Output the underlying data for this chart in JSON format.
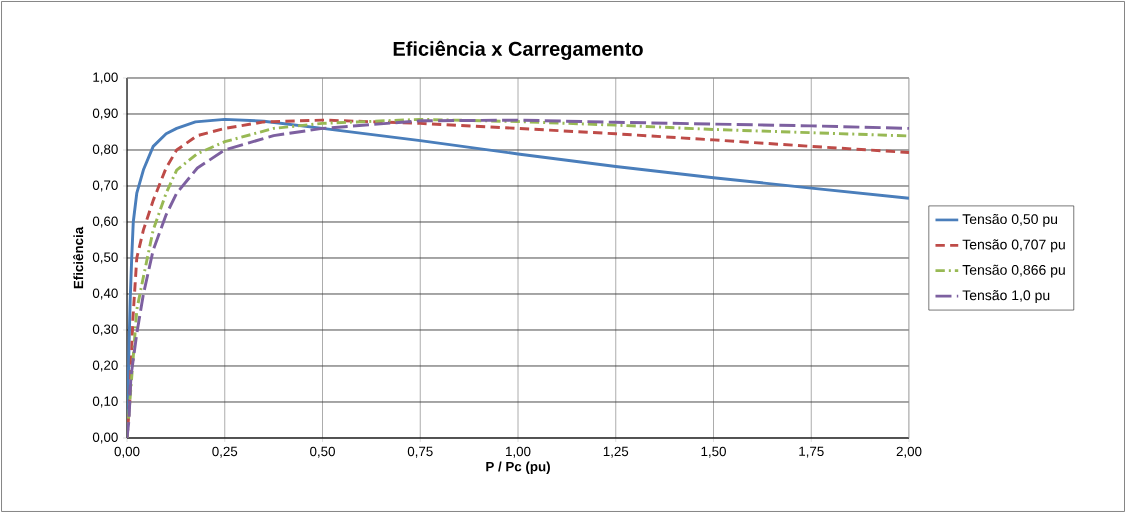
{
  "chart_data": {
    "type": "line",
    "title": "Eficiência x Carregamento",
    "xlabel": "P / Pc (pu)",
    "ylabel": "Eficiência",
    "xlim": [
      0,
      2
    ],
    "ylim": [
      0,
      1
    ],
    "xticks": [
      {
        "value": 0,
        "label": "0,00"
      },
      {
        "value": 0.25,
        "label": "0,25"
      },
      {
        "value": 0.5,
        "label": "0,50"
      },
      {
        "value": 0.75,
        "label": "0,75"
      },
      {
        "value": 1,
        "label": "1,00"
      },
      {
        "value": 1.25,
        "label": "1,25"
      },
      {
        "value": 1.5,
        "label": "1,50"
      },
      {
        "value": 1.75,
        "label": "1,75"
      },
      {
        "value": 2,
        "label": "2,00"
      }
    ],
    "yticks": [
      {
        "value": 0,
        "label": "0,00"
      },
      {
        "value": 0.1,
        "label": "0,10"
      },
      {
        "value": 0.2,
        "label": "0,20"
      },
      {
        "value": 0.3,
        "label": "0,30"
      },
      {
        "value": 0.4,
        "label": "0,40"
      },
      {
        "value": 0.5,
        "label": "0,50"
      },
      {
        "value": 0.6,
        "label": "0,60"
      },
      {
        "value": 0.7,
        "label": "0,70"
      },
      {
        "value": 0.8,
        "label": "0,80"
      },
      {
        "value": 0.9,
        "label": "0,90"
      },
      {
        "value": 1,
        "label": "1,00"
      }
    ],
    "grid": true,
    "legend": "right",
    "marker": "none",
    "series": [
      {
        "name": "Tensão 0,50 pu",
        "color": "#4a7ebb",
        "line_style": "solid",
        "x": [
          0,
          0.005,
          0.008,
          0.012,
          0.016,
          0.025,
          0.042,
          0.067,
          0.1,
          0.127,
          0.175,
          0.25,
          0.35,
          0.5,
          0.75,
          1.0,
          1.25,
          1.5,
          1.75,
          2.0
        ],
        "values": [
          0,
          0.25,
          0.38,
          0.5,
          0.6,
          0.68,
          0.745,
          0.81,
          0.845,
          0.86,
          0.878,
          0.885,
          0.88,
          0.86,
          0.826,
          0.789,
          0.754,
          0.723,
          0.694,
          0.666
        ]
      },
      {
        "name": "Tensão 0,707 pu",
        "color": "#be4b48",
        "line_style": "dashed",
        "x": [
          0,
          0.007,
          0.015,
          0.025,
          0.042,
          0.067,
          0.1,
          0.127,
          0.18,
          0.25,
          0.35,
          0.5,
          0.75,
          1.0,
          1.25,
          1.5,
          1.75,
          2.0
        ],
        "values": [
          0,
          0.1,
          0.33,
          0.5,
          0.578,
          0.66,
          0.75,
          0.8,
          0.84,
          0.86,
          0.878,
          0.883,
          0.874,
          0.86,
          0.845,
          0.828,
          0.81,
          0.793
        ]
      },
      {
        "name": "Tensão 0,866 pu",
        "color": "#98b954",
        "line_style": "dashdot",
        "x": [
          0,
          0.01,
          0.025,
          0.042,
          0.067,
          0.1,
          0.127,
          0.18,
          0.25,
          0.375,
          0.5,
          0.75,
          1.0,
          1.25,
          1.5,
          1.75,
          2.0
        ],
        "values": [
          0,
          0.14,
          0.356,
          0.448,
          0.578,
          0.68,
          0.744,
          0.79,
          0.823,
          0.86,
          0.874,
          0.885,
          0.879,
          0.869,
          0.857,
          0.848,
          0.839
        ]
      },
      {
        "name": "Tensão 1,0 pu",
        "color": "#7d60a0",
        "line_style": "longdash",
        "x": [
          0,
          0.005,
          0.01,
          0.025,
          0.042,
          0.067,
          0.1,
          0.127,
          0.18,
          0.25,
          0.375,
          0.5,
          0.75,
          1.0,
          1.25,
          1.5,
          1.75,
          2.0
        ],
        "values": [
          0,
          0.05,
          0.17,
          0.29,
          0.4,
          0.522,
          0.62,
          0.68,
          0.75,
          0.8,
          0.84,
          0.86,
          0.881,
          0.883,
          0.877,
          0.872,
          0.867,
          0.86
        ]
      }
    ]
  }
}
